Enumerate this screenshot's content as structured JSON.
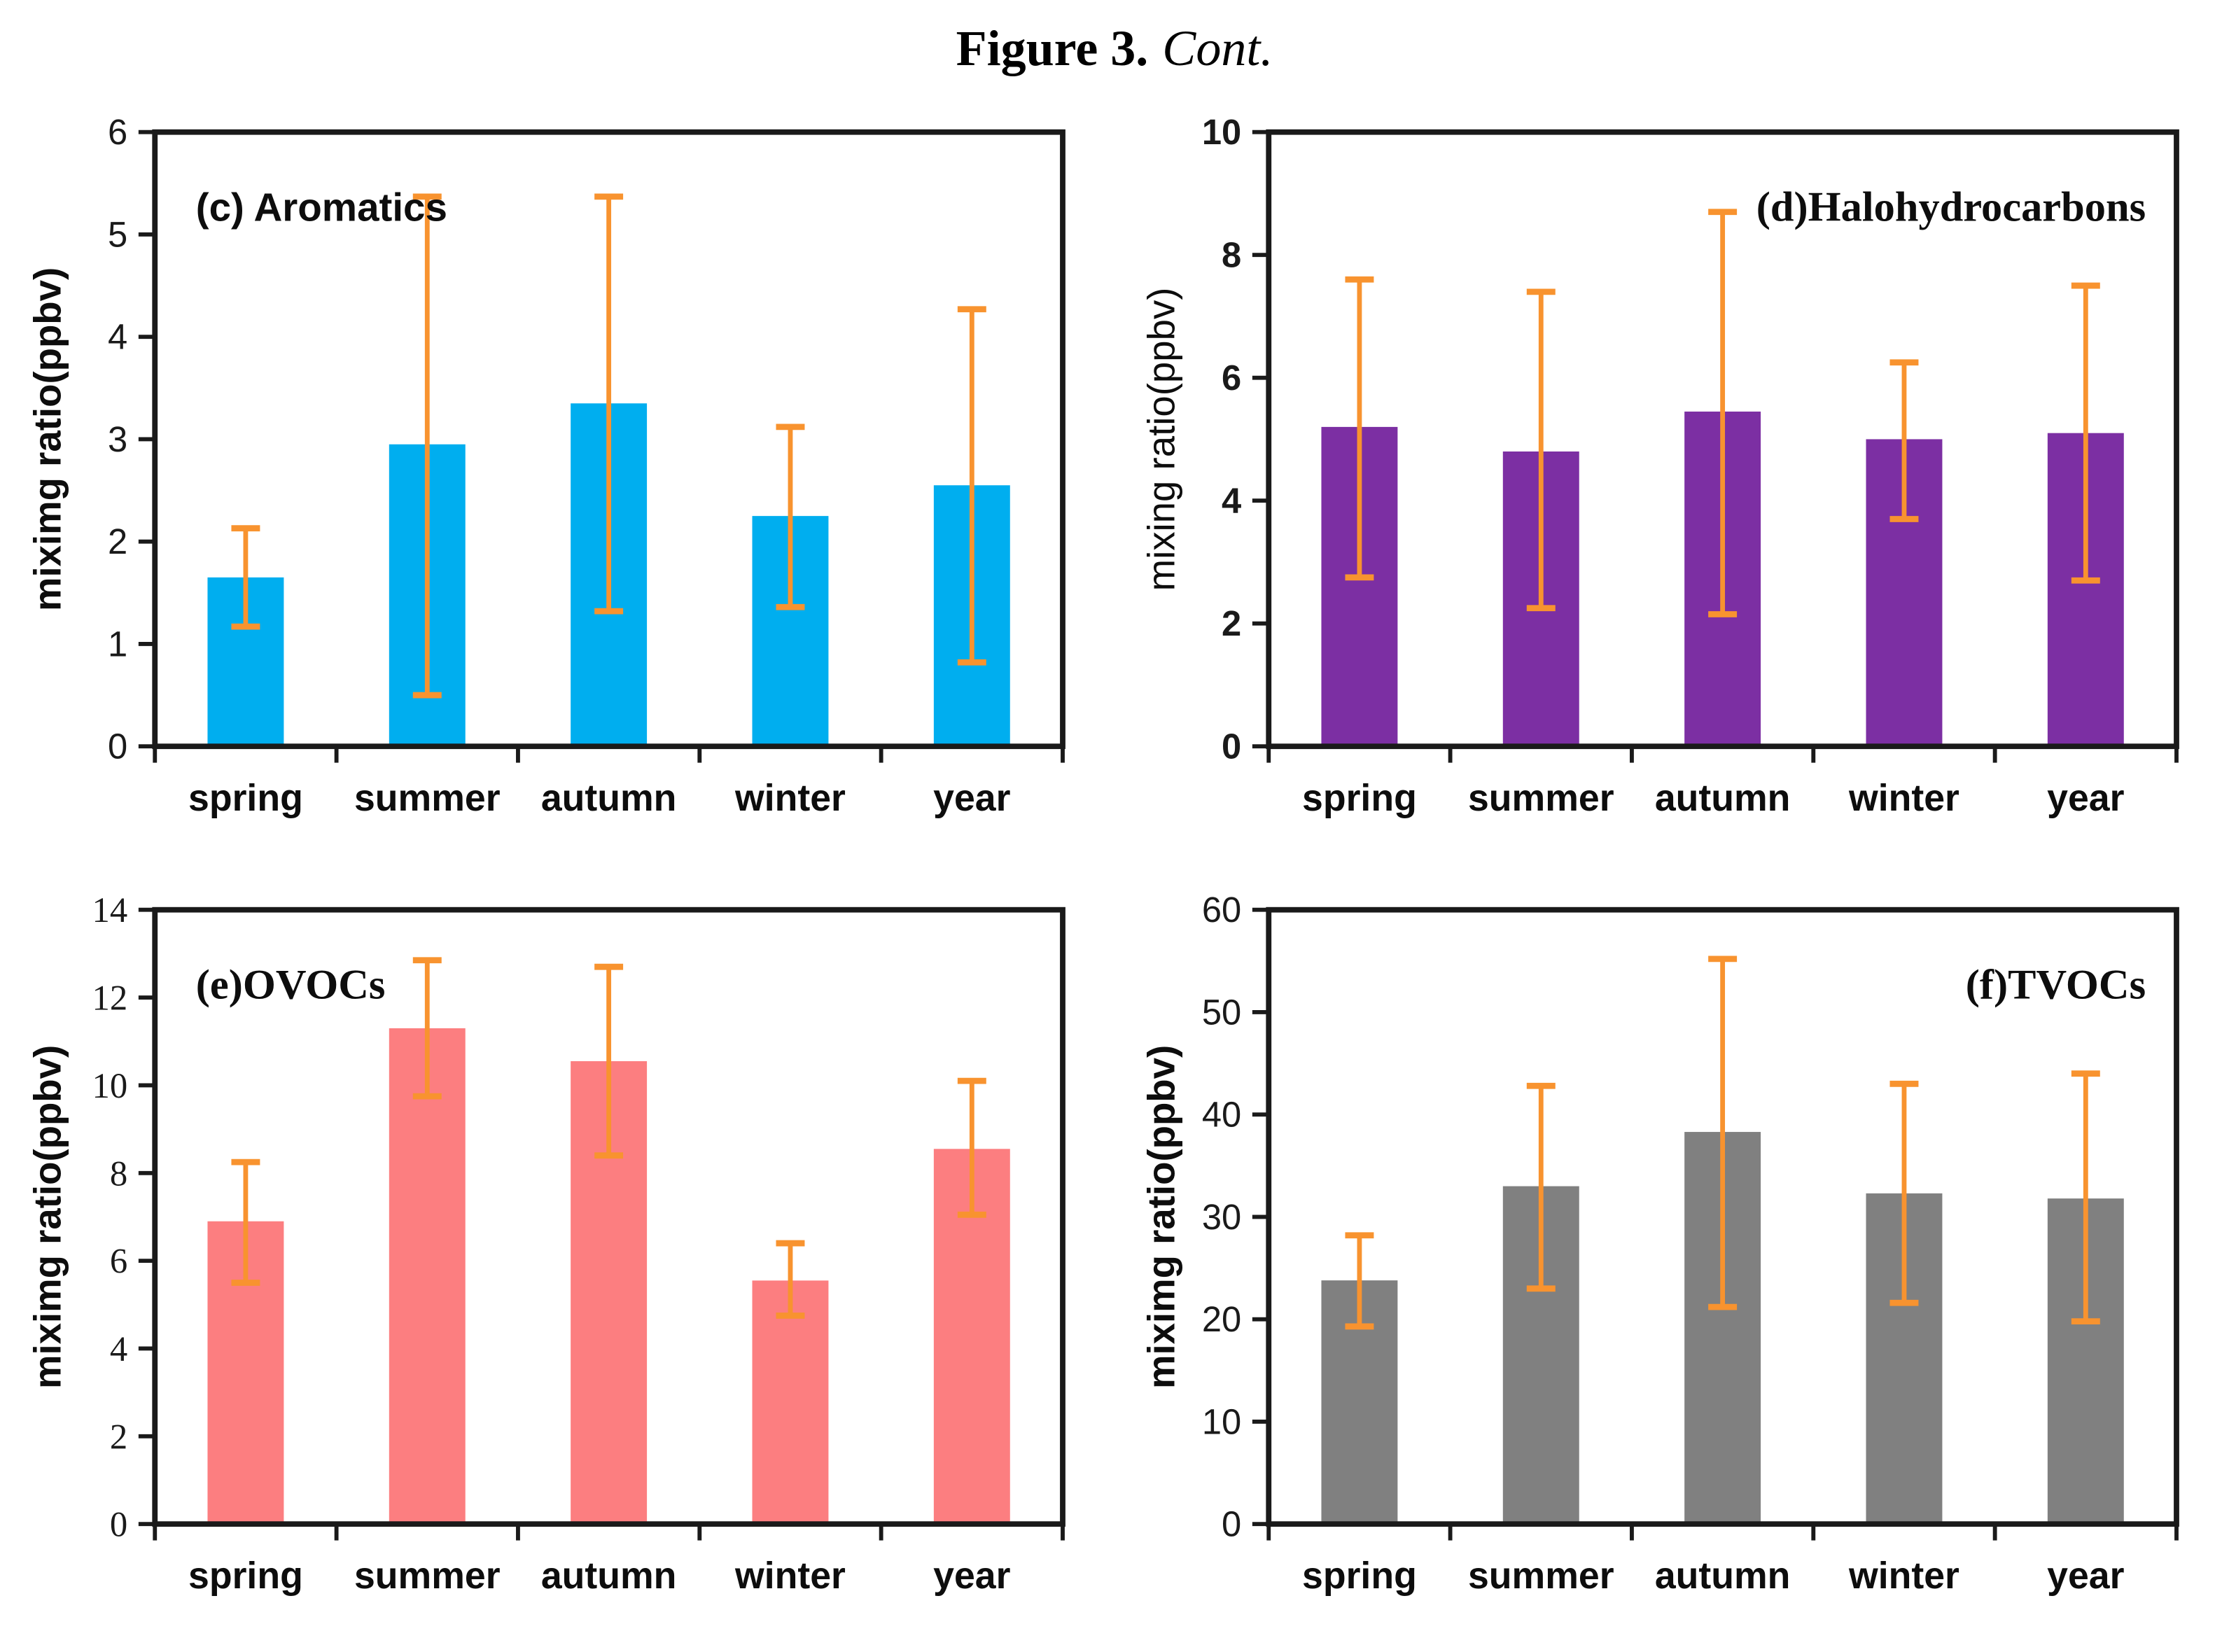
{
  "figure": {
    "title_bold": "Figure 3.",
    "title_italic": "Cont."
  },
  "colors": {
    "error_bar": "#F8932F",
    "axis": "#1a1a1a"
  },
  "chart_data": [
    {
      "type": "bar",
      "id": "aromatics",
      "label": "(c) Aromatics",
      "label_align": "left",
      "ylabel": "miximg ratio(ppbv)",
      "ylim": [
        0,
        6
      ],
      "ytick_step": 1,
      "grid": false,
      "categories": [
        "spring",
        "summer",
        "autumn",
        "winter",
        "year"
      ],
      "values": [
        1.65,
        2.95,
        3.35,
        2.25,
        2.55
      ],
      "error_low": [
        1.17,
        0.5,
        1.32,
        1.36,
        0.82
      ],
      "error_high": [
        2.13,
        5.37,
        5.37,
        3.12,
        4.27
      ],
      "bar_color": "#00AEEF"
    },
    {
      "type": "bar",
      "id": "halohydrocarbons",
      "label": "(d)Halohydrocarbons",
      "label_align": "right",
      "ylabel": "mixing ratio(ppbv)",
      "ylim": [
        0,
        10
      ],
      "ytick_step": 2,
      "grid": false,
      "categories": [
        "spring",
        "summer",
        "autumn",
        "winter",
        "year"
      ],
      "values": [
        5.2,
        4.8,
        5.45,
        5.0,
        5.1
      ],
      "error_low": [
        2.75,
        2.25,
        2.15,
        3.7,
        2.7
      ],
      "error_high": [
        7.6,
        7.4,
        8.7,
        6.25,
        7.5
      ],
      "bar_color": "#7C2FA3"
    },
    {
      "type": "bar",
      "id": "ovocs",
      "label": "(e)OVOCs",
      "label_align": "left",
      "ylabel": "miximg ratio(ppbv)",
      "ylim": [
        0,
        14
      ],
      "ytick_step": 2,
      "grid": false,
      "categories": [
        "spring",
        "summer",
        "autumn",
        "winter",
        "year"
      ],
      "values": [
        6.9,
        11.3,
        10.55,
        5.55,
        8.55
      ],
      "error_low": [
        5.5,
        9.75,
        8.4,
        4.75,
        7.05
      ],
      "error_high": [
        8.25,
        12.85,
        12.7,
        6.4,
        10.1
      ],
      "bar_color": "#FC7E80"
    },
    {
      "type": "bar",
      "id": "tvocs",
      "label": "(f)TVOCs",
      "label_align": "right",
      "ylabel": "miximg ratio(ppbv)",
      "ylim": [
        0,
        60
      ],
      "ytick_step": 10,
      "grid": false,
      "categories": [
        "spring",
        "summer",
        "autumn",
        "winter",
        "year"
      ],
      "values": [
        23.8,
        33.0,
        38.3,
        32.3,
        31.8
      ],
      "error_low": [
        19.3,
        23.0,
        21.2,
        21.6,
        19.8
      ],
      "error_high": [
        28.2,
        42.8,
        55.2,
        43.0,
        44.0
      ],
      "bar_color": "#808080"
    }
  ]
}
